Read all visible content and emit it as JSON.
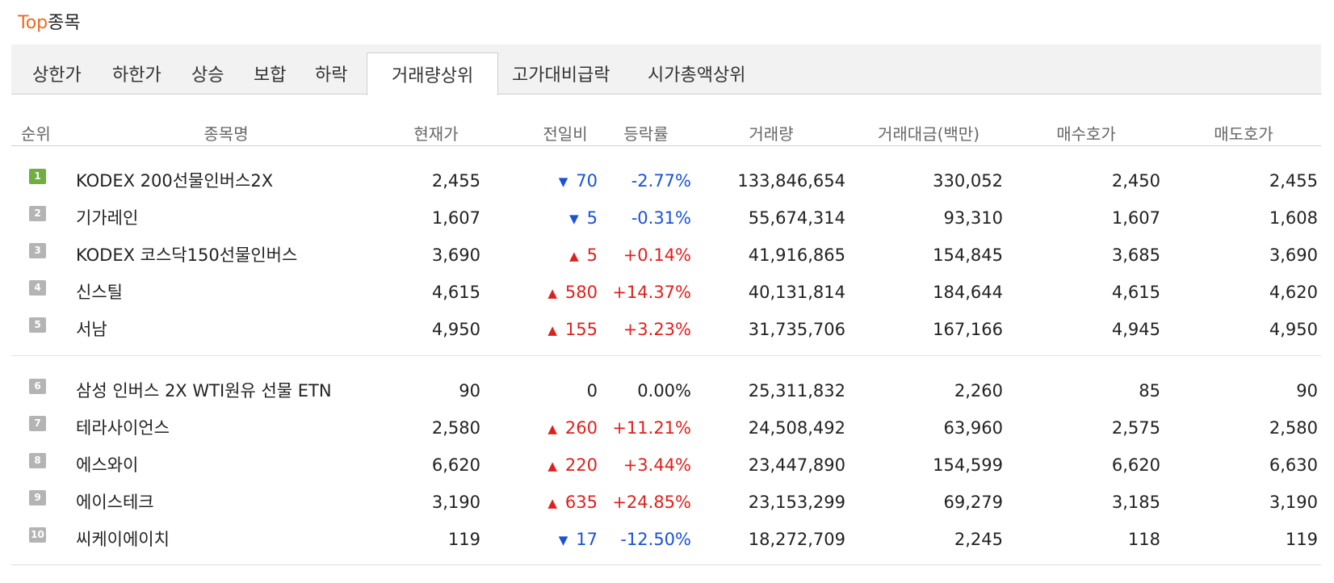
{
  "title": {
    "accent": "Top",
    "rest": "종목"
  },
  "tabs": [
    {
      "label": "상한가",
      "active": false
    },
    {
      "label": "하한가",
      "active": false
    },
    {
      "label": "상승",
      "active": false
    },
    {
      "label": "보합",
      "active": false
    },
    {
      "label": "하락",
      "active": false
    },
    {
      "label": "거래량상위",
      "active": true
    },
    {
      "label": "고가대비급락",
      "active": false
    },
    {
      "label": "시가총액상위",
      "active": false
    }
  ],
  "columns": [
    "순위",
    "종목명",
    "현재가",
    "전일비",
    "등락률",
    "거래량",
    "거래대금(백만)",
    "매수호가",
    "매도호가"
  ],
  "colors": {
    "up": "#e0201d",
    "down": "#1a52d6",
    "accent": "#ee6a1e",
    "rank_first": "#6fae3f"
  },
  "rows": [
    {
      "rank": "1",
      "name": "KODEX 200선물인버스2X",
      "price": "2,455",
      "dir": "down",
      "arrow": "▼",
      "change": "70",
      "rate": "-2.77%",
      "volume": "133,846,654",
      "amount": "330,052",
      "bid": "2,450",
      "ask": "2,455"
    },
    {
      "rank": "2",
      "name": "기가레인",
      "price": "1,607",
      "dir": "down",
      "arrow": "▼",
      "change": "5",
      "rate": "-0.31%",
      "volume": "55,674,314",
      "amount": "93,310",
      "bid": "1,607",
      "ask": "1,608"
    },
    {
      "rank": "3",
      "name": "KODEX 코스닥150선물인버스",
      "price": "3,690",
      "dir": "up",
      "arrow": "▲",
      "change": "5",
      "rate": "+0.14%",
      "volume": "41,916,865",
      "amount": "154,845",
      "bid": "3,685",
      "ask": "3,690"
    },
    {
      "rank": "4",
      "name": "신스틸",
      "price": "4,615",
      "dir": "up",
      "arrow": "▲",
      "change": "580",
      "rate": "+14.37%",
      "volume": "40,131,814",
      "amount": "184,644",
      "bid": "4,615",
      "ask": "4,620"
    },
    {
      "rank": "5",
      "name": "서남",
      "price": "4,950",
      "dir": "up",
      "arrow": "▲",
      "change": "155",
      "rate": "+3.23%",
      "volume": "31,735,706",
      "amount": "167,166",
      "bid": "4,945",
      "ask": "4,950"
    },
    {
      "rank": "6",
      "name": "삼성 인버스 2X WTI원유 선물 ETN",
      "price": "90",
      "dir": "flat",
      "arrow": "",
      "change": "0",
      "rate": "0.00%",
      "volume": "25,311,832",
      "amount": "2,260",
      "bid": "85",
      "ask": "90"
    },
    {
      "rank": "7",
      "name": "테라사이언스",
      "price": "2,580",
      "dir": "up",
      "arrow": "▲",
      "change": "260",
      "rate": "+11.21%",
      "volume": "24,508,492",
      "amount": "63,960",
      "bid": "2,575",
      "ask": "2,580"
    },
    {
      "rank": "8",
      "name": "에스와이",
      "price": "6,620",
      "dir": "up",
      "arrow": "▲",
      "change": "220",
      "rate": "+3.44%",
      "volume": "23,447,890",
      "amount": "154,599",
      "bid": "6,620",
      "ask": "6,630"
    },
    {
      "rank": "9",
      "name": "에이스테크",
      "price": "3,190",
      "dir": "up",
      "arrow": "▲",
      "change": "635",
      "rate": "+24.85%",
      "volume": "23,153,299",
      "amount": "69,279",
      "bid": "3,185",
      "ask": "3,190"
    },
    {
      "rank": "10",
      "name": "씨케이에이치",
      "price": "119",
      "dir": "down",
      "arrow": "▼",
      "change": "17",
      "rate": "-12.50%",
      "volume": "18,272,709",
      "amount": "2,245",
      "bid": "118",
      "ask": "119"
    }
  ]
}
